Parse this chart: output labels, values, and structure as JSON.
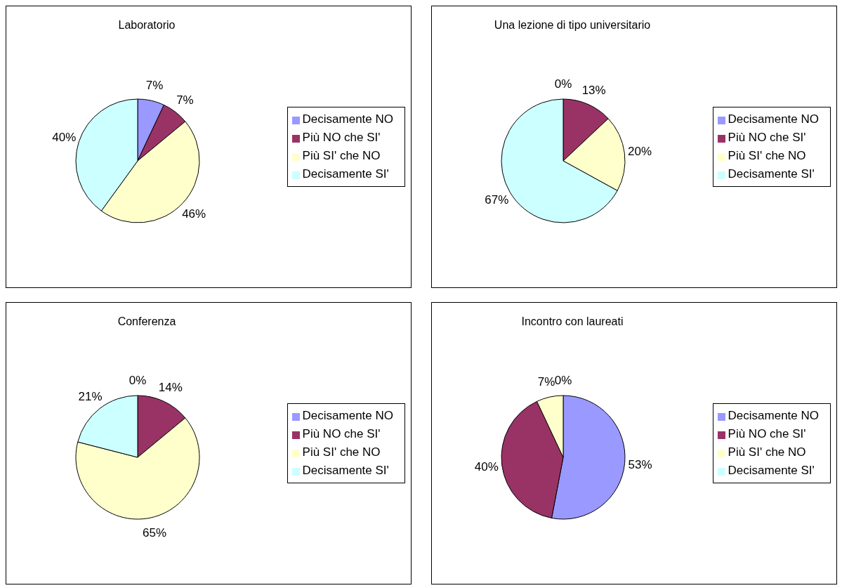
{
  "chart_data": [
    {
      "type": "pie",
      "title": "Laboratorio",
      "categories": [
        "Decisamente NO",
        "Più NO che SI'",
        "Più SI' che NO",
        "Decisamente SI'"
      ],
      "values": [
        7,
        7,
        46,
        40
      ],
      "colors": [
        "#9999ff",
        "#993366",
        "#ffffcc",
        "#ccffff"
      ],
      "value_labels": [
        "7%",
        "7%",
        "46%",
        "40%"
      ],
      "legend": "right"
    },
    {
      "type": "pie",
      "title": "Una lezione di tipo universitario",
      "categories": [
        "Decisamente NO",
        "Più NO che SI'",
        "Più SI' che NO",
        "Decisamente SI'"
      ],
      "values": [
        0,
        13,
        20,
        67
      ],
      "colors": [
        "#9999ff",
        "#993366",
        "#ffffcc",
        "#ccffff"
      ],
      "value_labels": [
        "0%",
        "13%",
        "20%",
        "67%"
      ],
      "legend": "right"
    },
    {
      "type": "pie",
      "title": "Conferenza",
      "categories": [
        "Decisamente NO",
        "Più NO che SI'",
        "Più SI' che NO",
        "Decisamente SI'"
      ],
      "values": [
        0,
        14,
        65,
        21
      ],
      "colors": [
        "#9999ff",
        "#993366",
        "#ffffcc",
        "#ccffff"
      ],
      "value_labels": [
        "0%",
        "14%",
        "65%",
        "21%"
      ],
      "legend": "right"
    },
    {
      "type": "pie",
      "title": "Incontro con laureati",
      "categories": [
        "Decisamente NO",
        "Più NO che SI'",
        "Più SI' che NO",
        "Decisamente SI'"
      ],
      "values": [
        53,
        40,
        7,
        0
      ],
      "colors": [
        "#9999ff",
        "#993366",
        "#ffffcc",
        "#ccffff"
      ],
      "value_labels": [
        "53%",
        "40%",
        "7%",
        "0%"
      ],
      "legend": "right"
    }
  ]
}
